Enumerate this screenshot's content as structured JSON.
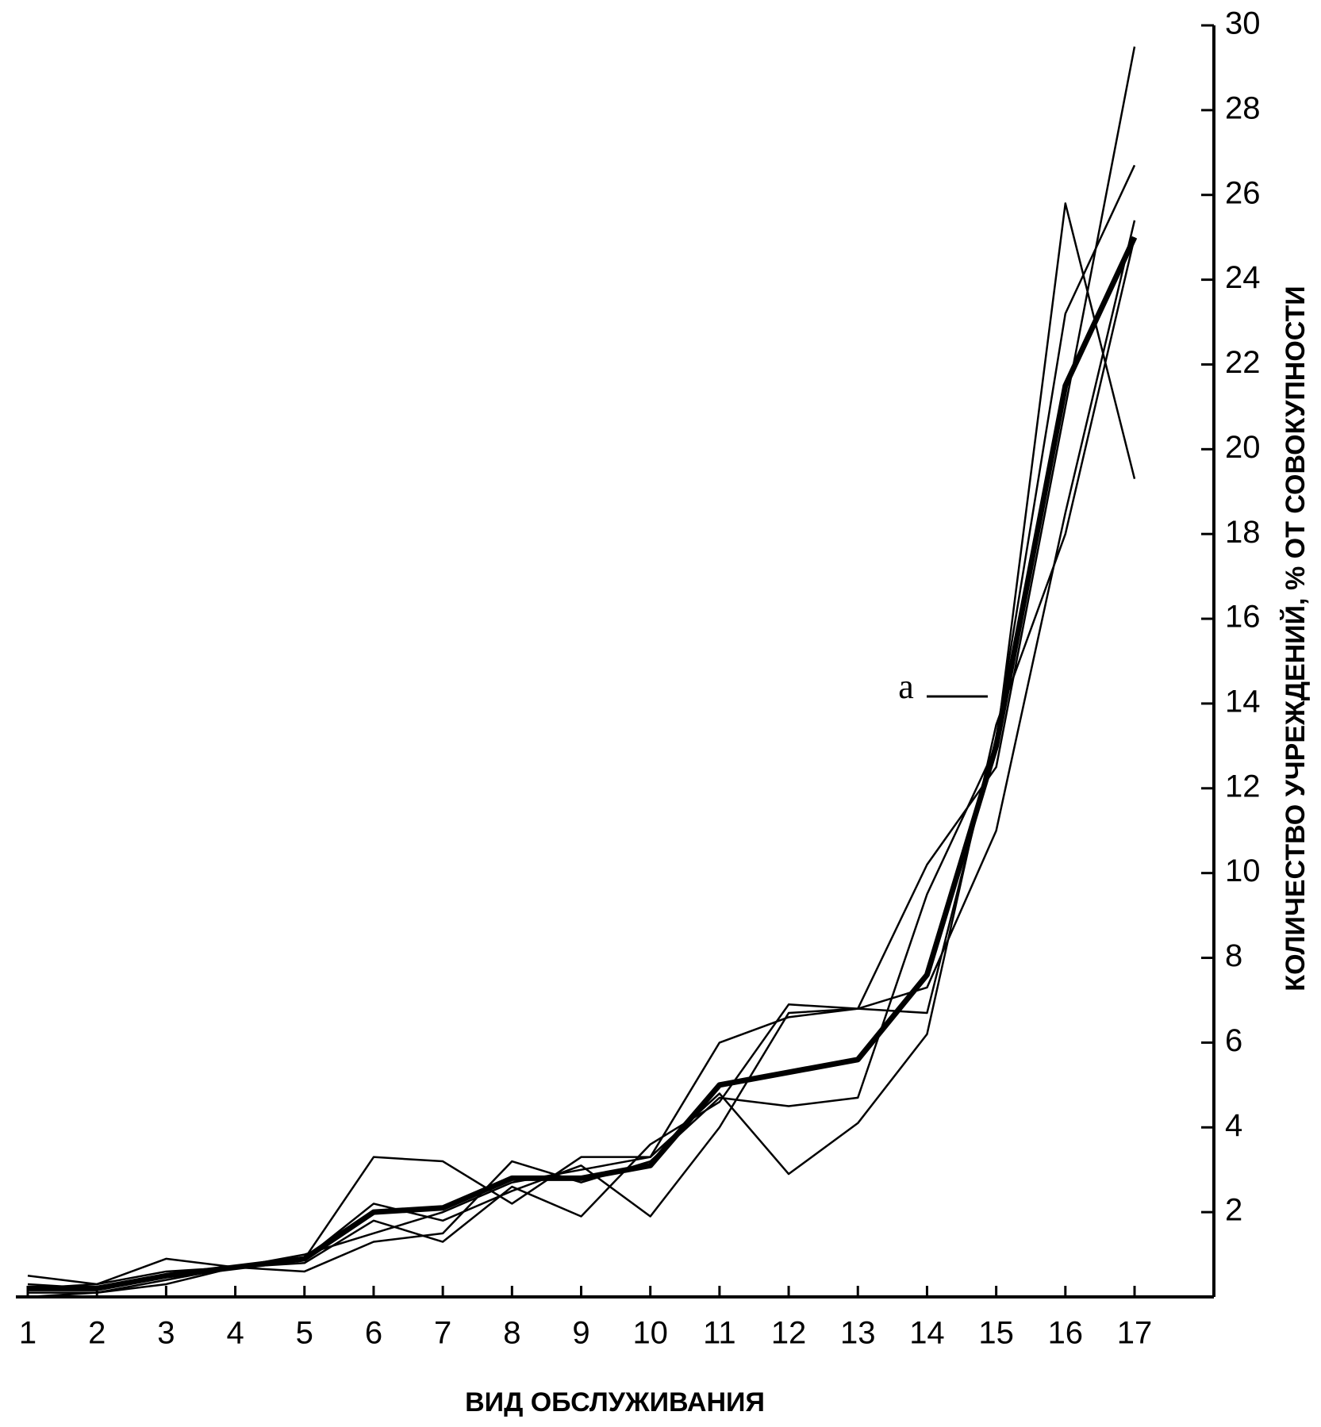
{
  "chart_data": {
    "type": "line",
    "x_label": "ВИД ОБСЛУЖИВАНИЯ",
    "y_label": "КОЛИЧЕСТВО УЧРЕЖДЕНИЙ, % ОТ СОВОКУПНОСТИ",
    "categories": [
      "1",
      "2",
      "3",
      "4",
      "5",
      "6",
      "7",
      "8",
      "9",
      "10",
      "11",
      "12",
      "13",
      "14",
      "15",
      "16",
      "17"
    ],
    "series": [
      {
        "color": "#000000",
        "linewidth": 2.5,
        "values": [
          0.5,
          0.3,
          0.9,
          0.7,
          0.9,
          3.3,
          3.2,
          2.2,
          3.3,
          3.3,
          6.0,
          6.6,
          6.8,
          10.2,
          12.5,
          21.0,
          29.5
        ]
      },
      {
        "color": "#000000",
        "linewidth": 2.5,
        "values": [
          0.1,
          0.1,
          0.3,
          0.7,
          0.6,
          1.3,
          1.5,
          3.2,
          2.7,
          3.2,
          4.7,
          4.5,
          4.7,
          9.5,
          13.0,
          25.8,
          19.3
        ]
      },
      {
        "color": "#000000",
        "linewidth": 2.5,
        "values": [
          0.3,
          0.2,
          0.5,
          0.7,
          0.8,
          1.8,
          1.3,
          2.6,
          1.9,
          3.6,
          4.6,
          6.9,
          6.8,
          6.7,
          13.2,
          23.2,
          26.7
        ]
      },
      {
        "color": "#000000",
        "linewidth": 2.5,
        "values": [
          0.0,
          0.1,
          0.4,
          0.7,
          0.9,
          2.2,
          1.8,
          2.5,
          3.1,
          1.9,
          4.0,
          6.7,
          6.8,
          7.3,
          11.0,
          18.5,
          25.4
        ]
      },
      {
        "color": "#000000",
        "linewidth": 2.5,
        "values": [
          0.2,
          0.3,
          0.6,
          0.7,
          1.0,
          1.5,
          2.0,
          2.7,
          3.0,
          3.3,
          4.8,
          2.9,
          4.1,
          6.2,
          13.5,
          18.0,
          25.0
        ]
      },
      {
        "color": "#000000",
        "linewidth": 7,
        "values": [
          0.2,
          0.2,
          0.5,
          0.7,
          0.9,
          2.0,
          2.1,
          2.8,
          2.8,
          3.1,
          5.0,
          5.3,
          5.6,
          7.6,
          13.0,
          21.5,
          25.0
        ]
      }
    ],
    "annotations": [
      {
        "text": "а"
      }
    ],
    "ylim": [
      0,
      30
    ],
    "yticks": [
      2,
      4,
      6,
      8,
      10,
      12,
      14,
      16,
      18,
      20,
      22,
      24,
      26,
      28,
      30
    ],
    "y_axis_side": "right"
  }
}
